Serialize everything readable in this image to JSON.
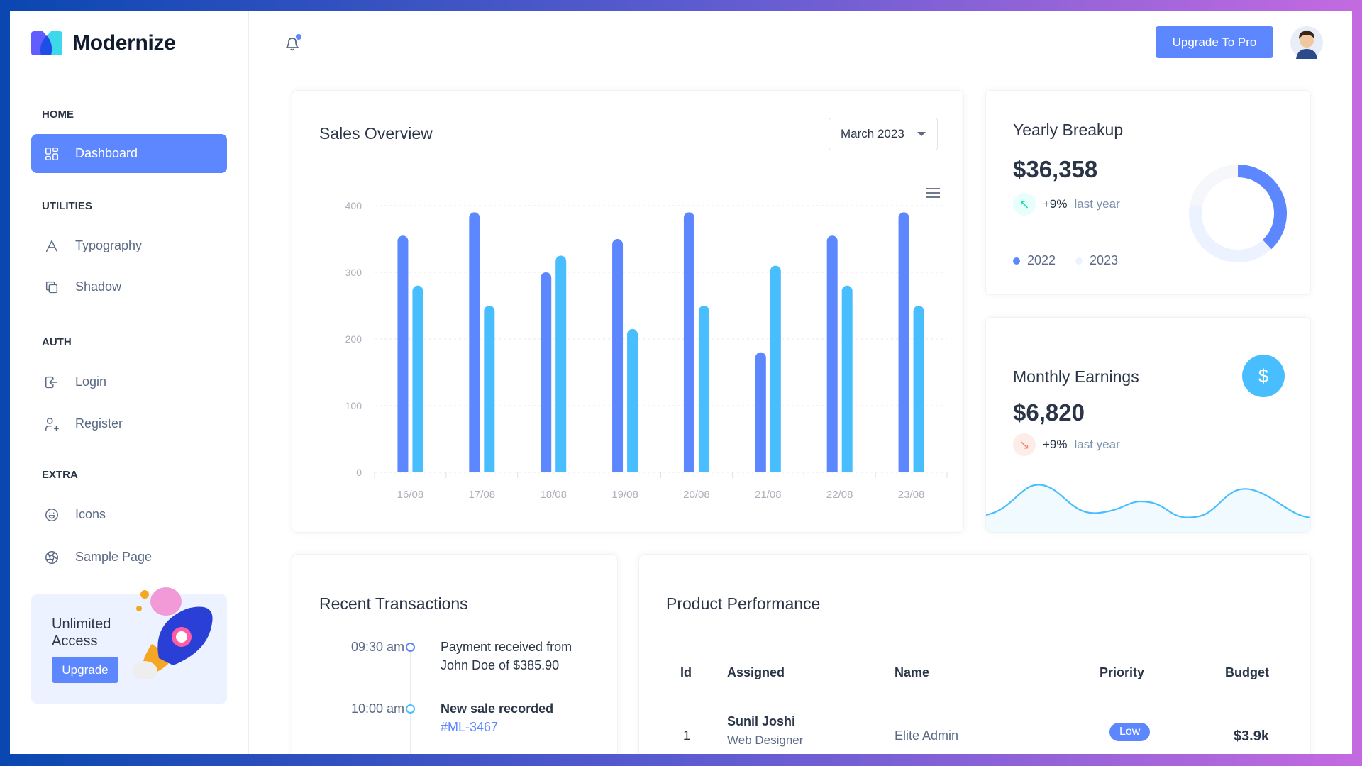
{
  "brand": {
    "name": "Modernize"
  },
  "sidebar": {
    "sections": [
      {
        "title": "HOME",
        "items": [
          {
            "label": "Dashboard",
            "icon": "layout-dashboard-icon"
          }
        ]
      },
      {
        "title": "UTILITIES",
        "items": [
          {
            "label": "Typography",
            "icon": "typography-icon"
          },
          {
            "label": "Shadow",
            "icon": "copy-icon"
          }
        ]
      },
      {
        "title": "AUTH",
        "items": [
          {
            "label": "Login",
            "icon": "login-icon"
          },
          {
            "label": "Register",
            "icon": "user-plus-icon"
          }
        ]
      },
      {
        "title": "EXTRA",
        "items": [
          {
            "label": "Icons",
            "icon": "mood-happy-icon"
          },
          {
            "label": "Sample Page",
            "icon": "aperture-icon"
          }
        ]
      }
    ],
    "promo": {
      "title_line1": "Unlimited",
      "title_line2": "Access",
      "button": "Upgrade"
    }
  },
  "header": {
    "upgrade_button": "Upgrade To Pro"
  },
  "sales": {
    "title": "Sales Overview",
    "month_select": "March 2023"
  },
  "yearly": {
    "title": "Yearly Breakup",
    "amount": "$36,358",
    "change": "+9%",
    "change_label": "last year",
    "legend": [
      "2022",
      "2023"
    ],
    "donut": [
      38,
      40,
      22
    ],
    "colors": [
      "#5d87ff",
      "#ecf2ff",
      "#f6f7fb"
    ]
  },
  "monthly": {
    "title": "Monthly Earnings",
    "amount": "$6,820",
    "change": "+9%",
    "change_label": "last year"
  },
  "transactions": {
    "title": "Recent Transactions",
    "items": [
      {
        "time": "09:30 am",
        "line1": "Payment received from",
        "line2": "John Doe of $385.90",
        "color": "#5d87ff"
      },
      {
        "time": "10:00 am",
        "line1": "New sale recorded",
        "line2": "#ML-3467",
        "color": "#49beff"
      }
    ]
  },
  "products": {
    "title": "Product Performance",
    "columns": [
      "Id",
      "Assigned",
      "Name",
      "Priority",
      "Budget"
    ],
    "rows": [
      {
        "id": "1",
        "assigned": "Sunil Joshi",
        "role": "Web Designer",
        "name": "Elite Admin",
        "priority": "Low",
        "budget": "$3.9k"
      }
    ]
  },
  "chart_data": {
    "type": "bar",
    "categories": [
      "16/08",
      "17/08",
      "18/08",
      "19/08",
      "20/08",
      "21/08",
      "22/08",
      "23/08"
    ],
    "series": [
      {
        "values": [
          355,
          390,
          300,
          350,
          390,
          180,
          355,
          390
        ],
        "color": "#5d87ff"
      },
      {
        "values": [
          280,
          250,
          325,
          215,
          250,
          310,
          280,
          250
        ],
        "color": "#49beff"
      }
    ],
    "yticks": [
      0,
      100,
      200,
      300,
      400
    ],
    "ylim": [
      0,
      400
    ],
    "grid": true
  }
}
